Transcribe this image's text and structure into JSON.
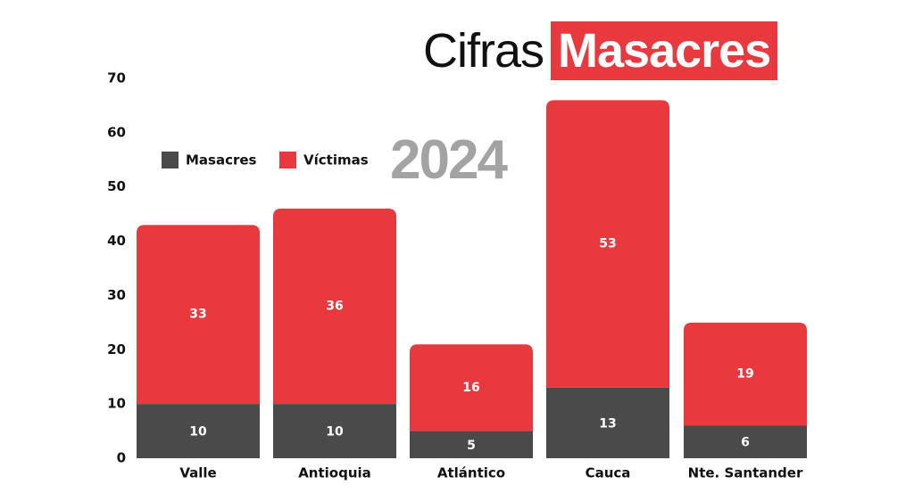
{
  "title": {
    "light": "Cifras",
    "highlight": "Masacres"
  },
  "colors": {
    "masacres": "#4a4a4a",
    "victimas": "#e8393f",
    "year": "#a3a3a3",
    "text": "#111111",
    "label": "#ffffff"
  },
  "chart_data": {
    "type": "bar",
    "stacked": true,
    "subtitle": "2024",
    "categories": [
      "Valle",
      "Antioquia",
      "Atlántico",
      "Cauca",
      "Nte. Santander"
    ],
    "series": [
      {
        "name": "Masacres",
        "values": [
          10,
          10,
          5,
          13,
          6
        ]
      },
      {
        "name": "Víctimas",
        "values": [
          33,
          36,
          16,
          53,
          19
        ]
      }
    ],
    "ylim": [
      0,
      70
    ],
    "yticks": [
      0,
      10,
      20,
      30,
      40,
      50,
      60,
      70
    ],
    "legend": "top-left",
    "grid": false
  }
}
